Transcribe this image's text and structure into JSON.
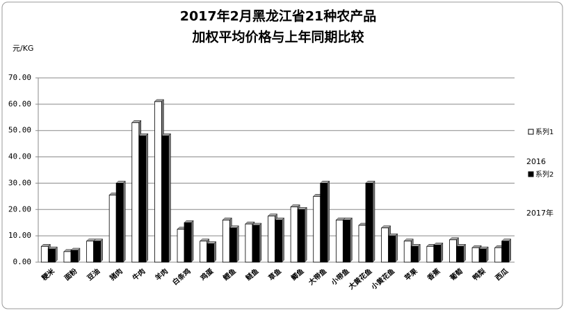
{
  "chart_data": {
    "type": "bar",
    "title": "2017年2月黑龙江省21种农产品",
    "subtitle": "加权平均价格与上年同期比较",
    "y_label": "元/KG",
    "categories": [
      "粳米",
      "面粉",
      "豆油",
      "猪肉",
      "牛肉",
      "羊肉",
      "白条鸡",
      "鸡蛋",
      "鲤鱼",
      "鲢鱼",
      "草鱼",
      "鲫鱼",
      "大带鱼",
      "小带鱼",
      "大黄花鱼",
      "小黄花鱼",
      "苹果",
      "香蕉",
      "葡萄",
      "鸭梨",
      "西瓜"
    ],
    "series": [
      {
        "name": "系列1",
        "color": "#ffffff",
        "values": [
          6,
          4,
          8,
          25.5,
          53,
          61,
          12.5,
          8,
          16,
          14.5,
          17.5,
          21,
          25,
          16,
          14,
          13,
          8,
          6,
          8.5,
          5.5,
          5.5
        ]
      },
      {
        "name": "系列2",
        "color": "#000000",
        "values": [
          5,
          4.5,
          8,
          30,
          48,
          48,
          15,
          7,
          13,
          14,
          16,
          20,
          30,
          16,
          30,
          10,
          6,
          6.5,
          6,
          5,
          8
        ]
      }
    ],
    "legend_notes": [
      "2016",
      "2017年"
    ],
    "ylim": [
      0,
      70
    ],
    "yticks": [
      {
        "value": 0,
        "label": "0.00"
      },
      {
        "value": 10,
        "label": "10.00"
      },
      {
        "value": 20,
        "label": "20.00"
      },
      {
        "value": 30,
        "label": "30.00"
      },
      {
        "value": 40,
        "label": "40.00"
      },
      {
        "value": 50,
        "label": "50.00"
      },
      {
        "value": 60,
        "label": "60.00"
      },
      {
        "value": 70,
        "label": "70.00"
      }
    ],
    "grid": true,
    "legend": "right"
  }
}
